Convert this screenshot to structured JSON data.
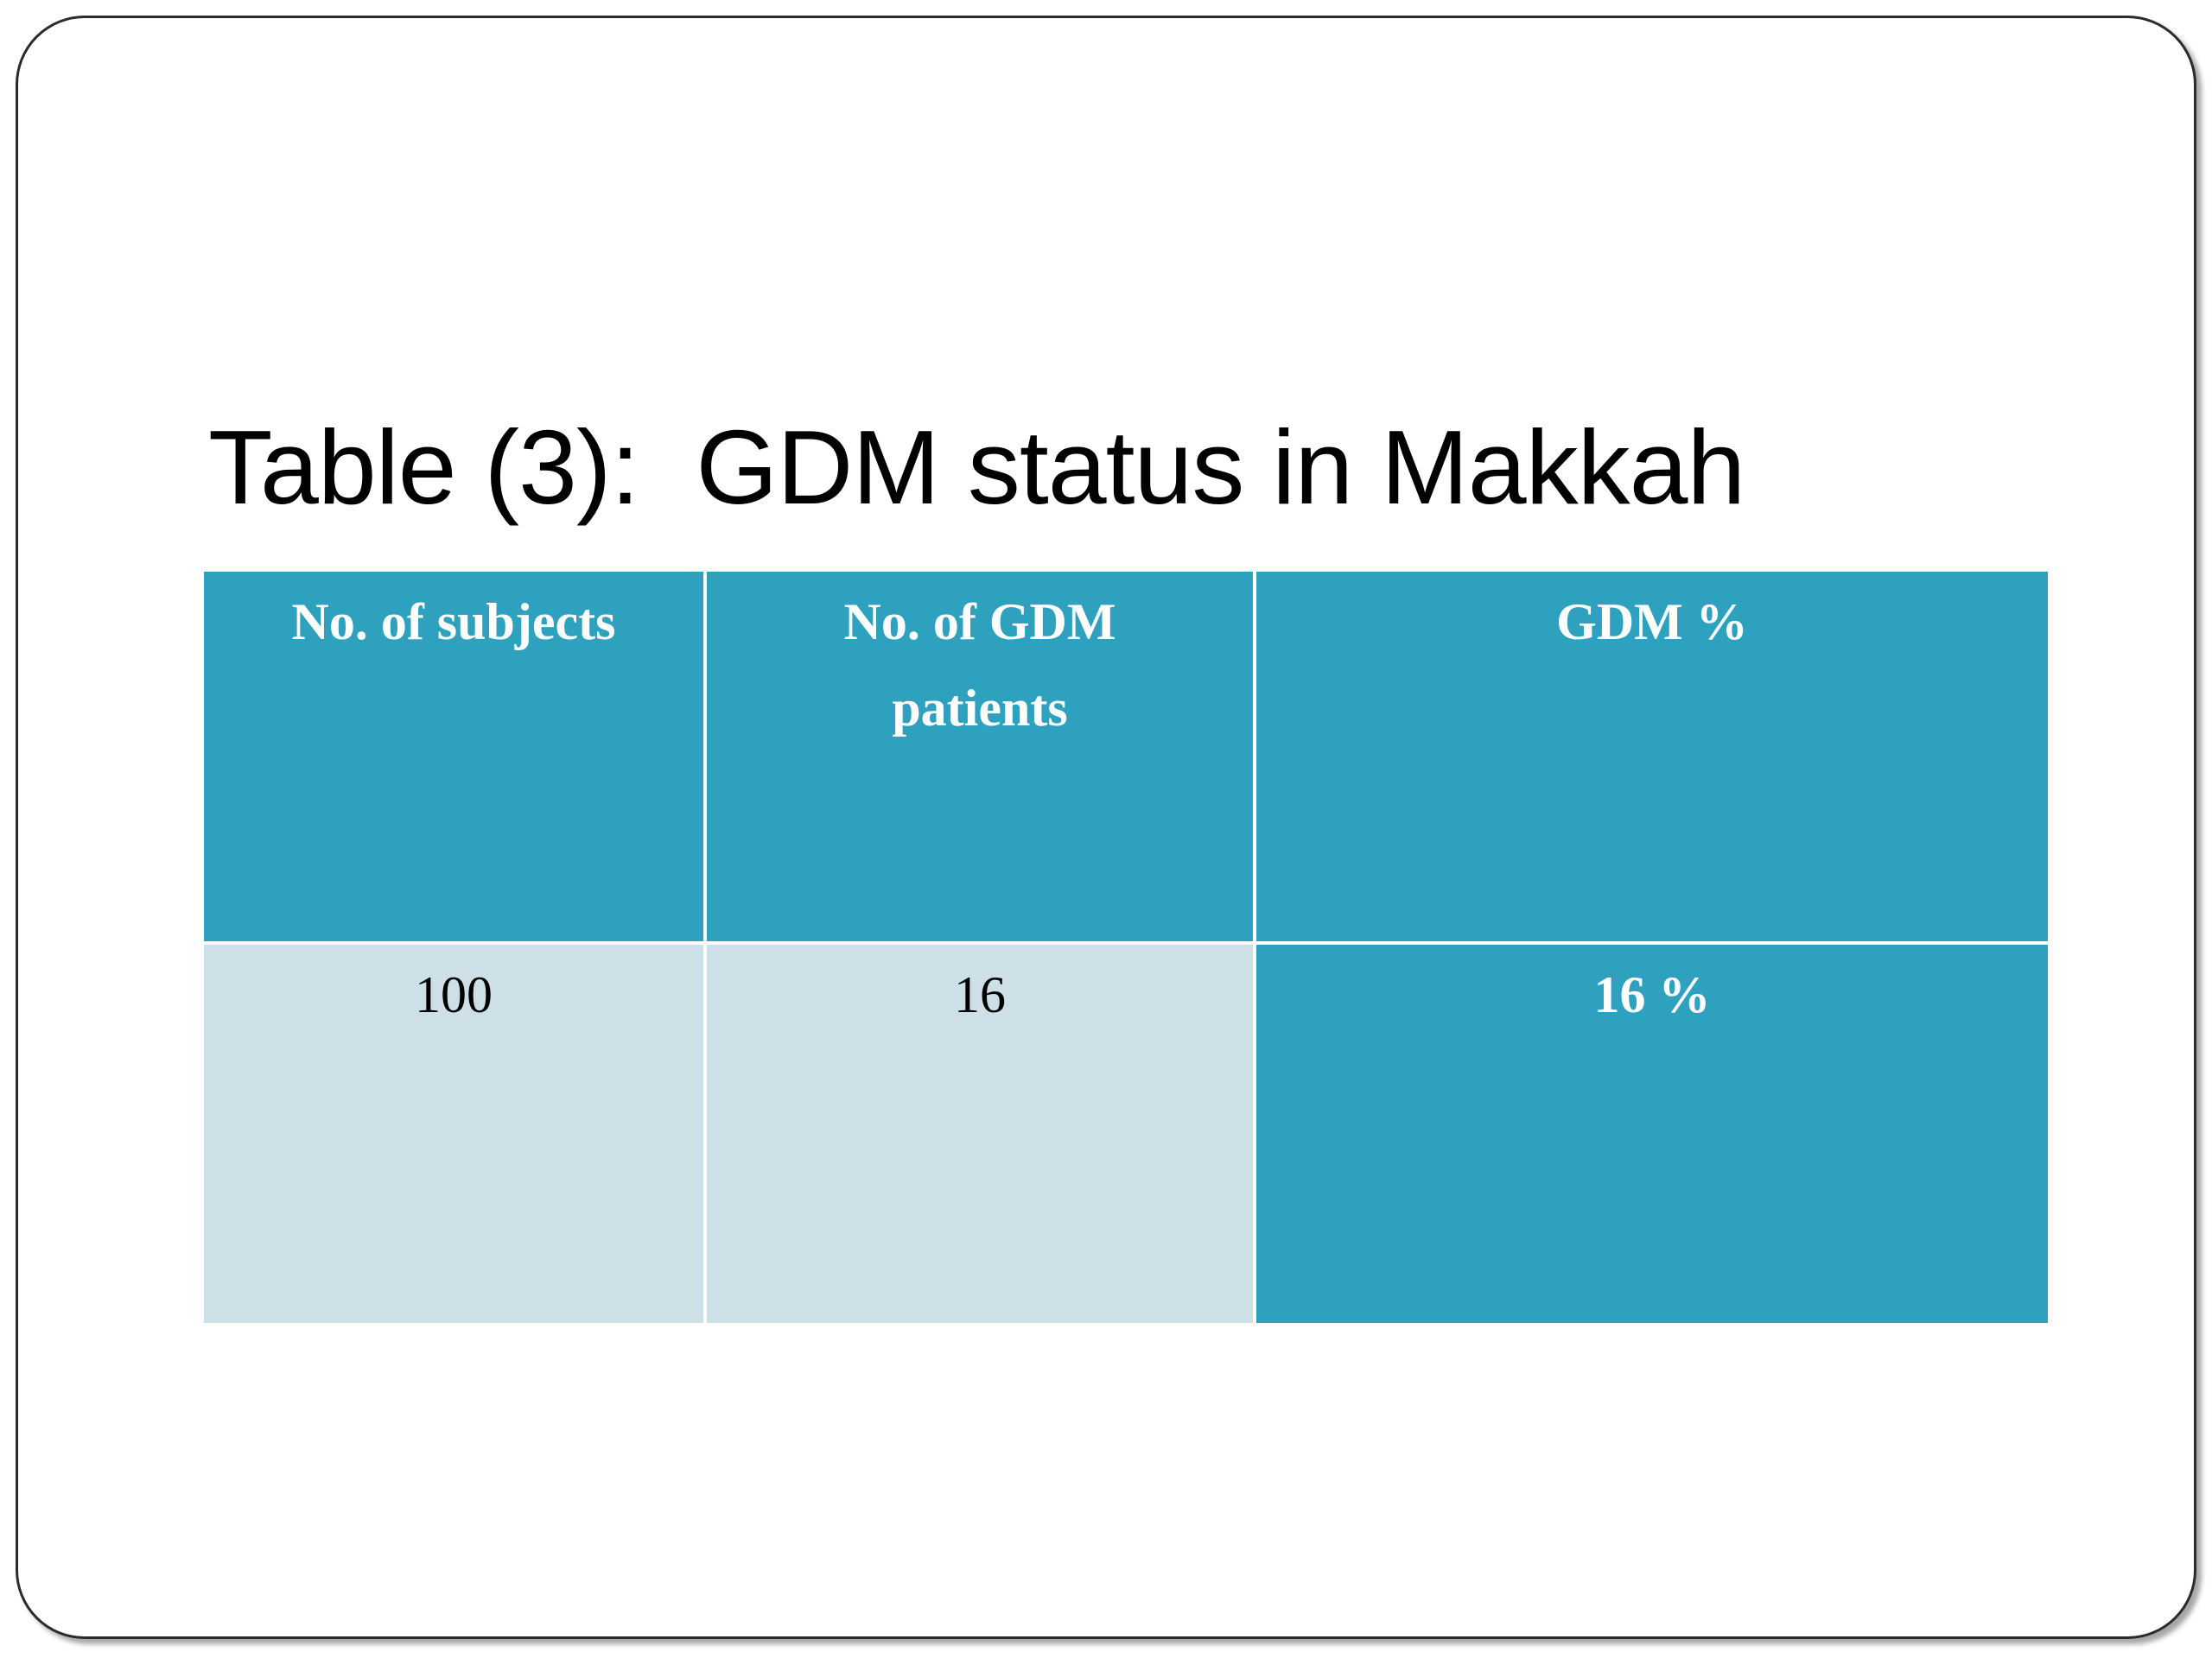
{
  "slide": {
    "title": "Table (3):  GDM status in Makkah"
  },
  "table": {
    "headers": [
      "No. of subjects",
      "No. of GDM patients",
      "GDM  %"
    ],
    "rows": [
      [
        "100",
        "16",
        "16 %"
      ]
    ]
  },
  "colors": {
    "header_bg": "#2ea1bf",
    "cell_light_bg": "#cde0e8",
    "accent_cell_bg": "#2ea1bf"
  }
}
